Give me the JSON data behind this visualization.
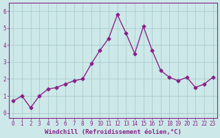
{
  "x": [
    0,
    1,
    2,
    3,
    4,
    5,
    6,
    7,
    8,
    9,
    10,
    11,
    12,
    13,
    14,
    15,
    16,
    17,
    18,
    19,
    20,
    21,
    22,
    23
  ],
  "y": [
    0.7,
    1.0,
    0.3,
    1.0,
    1.4,
    1.5,
    1.7,
    1.9,
    2.0,
    2.9,
    3.7,
    4.4,
    5.8,
    4.7,
    3.5,
    5.1,
    3.7,
    2.5,
    2.1,
    1.9,
    2.1,
    1.5,
    1.7,
    2.1
  ],
  "line_color": "#882288",
  "marker": "D",
  "marker_size": 2.5,
  "line_width": 1.0,
  "xlabel": "Windchill (Refroidissement éolien,°C)",
  "xlim": [
    -0.5,
    23.5
  ],
  "ylim": [
    -0.3,
    6.5
  ],
  "yticks": [
    0,
    1,
    2,
    3,
    4,
    5,
    6
  ],
  "xticks": [
    0,
    1,
    2,
    3,
    4,
    5,
    6,
    7,
    8,
    9,
    10,
    11,
    12,
    13,
    14,
    15,
    16,
    17,
    18,
    19,
    20,
    21,
    22,
    23
  ],
  "background_color": "#cce8e8",
  "grid_color": "#aacccc",
  "tick_label_color": "#882288",
  "xlabel_color": "#882288",
  "xlabel_fontsize": 6.5,
  "tick_fontsize": 5.5
}
